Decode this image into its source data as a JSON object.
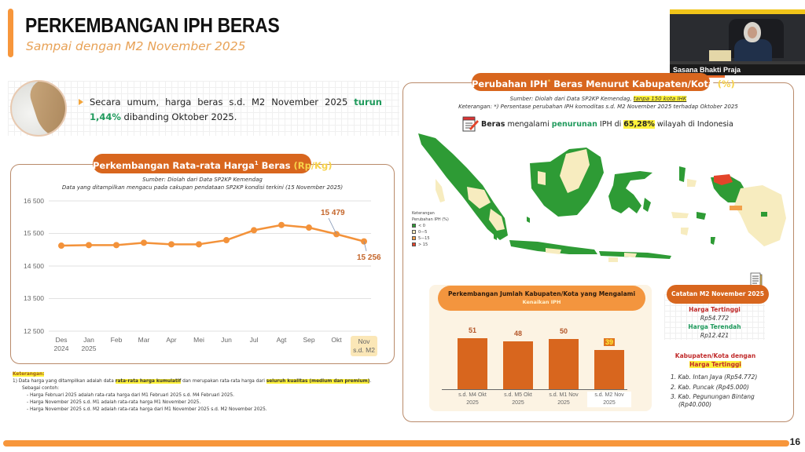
{
  "header": {
    "title": "PERKEMBANGAN IPH BERAS",
    "subtitle": "Sampai dengan M2 November 2025"
  },
  "video_feed": {
    "caption": "Sasana Bhakti Praja",
    "nameplate": "KEPALA BPS"
  },
  "intro": {
    "text_before": "Secara umum, harga beras s.d. M2 November 2025 ",
    "highlight": "turun 1,44%",
    "text_after": " dibanding Oktober 2025.",
    "highlight_color": "#1f9a5c"
  },
  "price_panel": {
    "title_main": "Perkembangan Rata-rata Harga",
    "title_sup": "1",
    "title_tail": " Beras ",
    "title_unit": "(Rp/Kg)",
    "source_line1": "Sumber: Diolah dari Data SP2KP Kemendag",
    "source_line2": "Data yang ditampilkan mengacu pada cakupan pendataan SP2KP kondisi terkini (15 November 2025)",
    "y_ticks": [
      "16 500",
      "15 500",
      "14 500",
      "13 500",
      "12 500"
    ],
    "x_ticks": [
      {
        "l1": "Des",
        "l2": "2024"
      },
      {
        "l1": "Jan",
        "l2": "2025"
      },
      {
        "l1": "Feb",
        "l2": ""
      },
      {
        "l1": "Mar",
        "l2": ""
      },
      {
        "l1": "Apr",
        "l2": ""
      },
      {
        "l1": "Mei",
        "l2": ""
      },
      {
        "l1": "Jun",
        "l2": ""
      },
      {
        "l1": "Jul",
        "l2": ""
      },
      {
        "l1": "Agt",
        "l2": ""
      },
      {
        "l1": "Sep",
        "l2": ""
      },
      {
        "l1": "Okt",
        "l2": ""
      },
      {
        "l1": "Nov",
        "l2": "s.d. M2"
      }
    ],
    "label_okt": "15 479",
    "label_nov": "15 256"
  },
  "notes": {
    "title": "Keterangan:",
    "item1_a": "1)  Data harga yang ditampilkan adalah data ",
    "item1_hl1": "rata-rata harga kumulatif",
    "item1_b": " dan merupakan rata-rata harga dari ",
    "item1_hl2": "seluruh kualitas (medium dan premium)",
    "item1_c": ".",
    "example_label": "Sebagai contoh:",
    "examples": [
      "Harga Februari 2025 adalah rata-rata harga dari M1 Februari 2025 s.d. M4 Februari 2025.",
      "Harga November 2025 s.d. M1 adalah rata-rata harga M1 November 2025.",
      "Harga November 2025 s.d. M2 adalah rata-rata harga dari M1 November 2025 s.d. M2 November 2025."
    ]
  },
  "map_panel": {
    "title_main": "Perubahan IPH",
    "title_sup": "*",
    "title_tail": " Beras Menurut Kabupaten/Kota ",
    "title_unit": "(%)",
    "source_a": "Sumber: Diolah dari Data SP2KP Kemendag, ",
    "source_hl": "tanpa 150 kota IHK",
    "keterangan": "Keterangan: *) Persentase perubahan IPH komoditas s.d. M2 November 2025 terhadap Oktober 2025",
    "stat_a": "Beras",
    "stat_b": " mengalami ",
    "stat_c": "penurunan",
    "stat_d": " IPH di ",
    "stat_e": "65,28%",
    "stat_f": " wilayah di Indonesia",
    "legend_title1": "Keterangan",
    "legend_title2": "Perubahan IPH (%)",
    "legend": [
      {
        "label": "< 0",
        "color": "#2e9b35"
      },
      {
        "label": "0—5",
        "color": "#f7ecbf"
      },
      {
        "label": "5—15",
        "color": "#f2a04a"
      },
      {
        "label": "> 15",
        "color": "#e3442a"
      }
    ]
  },
  "bar_panel": {
    "title_line1": "Perkembangan Jumlah Kabupaten/Kota yang Mengalami",
    "title_line2": "Kenaikan IPH",
    "bars": [
      {
        "value": "51",
        "cat1": "s.d. M4 Okt",
        "cat2": "2025"
      },
      {
        "value": "48",
        "cat1": "s.d. M5 Okt",
        "cat2": "2025"
      },
      {
        "value": "50",
        "cat1": "s.d. M1 Nov",
        "cat2": "2025"
      },
      {
        "value": "39",
        "cat1": "s.d. M2 Nov",
        "cat2": "2025"
      }
    ]
  },
  "catatan": {
    "title": "Catatan M2 November 2025",
    "highest_label": "Harga Tertinggi",
    "highest_value": "Rp54.772",
    "lowest_label": "Harga Terendah",
    "lowest_value": "Rp12.421",
    "kab_title_line1": "Kabupaten/Kota dengan",
    "kab_title_line2": "Harga Tertinggi",
    "kab_list": [
      "1. Kab. Intan Jaya (Rp54.772)",
      "2. Kab. Puncak (Rp45.000)",
      "3. Kab. Pegunungan Bintang",
      "(Rp40.000)"
    ]
  },
  "footer": {
    "page_number": "16"
  },
  "colors": {
    "accent_orange": "#f7963b",
    "pill_orange": "#d8661e",
    "green": "#1f9a5c",
    "line_orange": "#f3923a"
  },
  "chart_data": [
    {
      "type": "line",
      "title": "Perkembangan Rata-rata Harga Beras (Rp/Kg)",
      "xlabel": "",
      "ylabel": "Rp/Kg",
      "categories": [
        "Des 2024",
        "Jan 2025",
        "Feb",
        "Mar",
        "Apr",
        "Mei",
        "Jun",
        "Jul",
        "Agt",
        "Sep",
        "Okt",
        "Nov s.d. M2"
      ],
      "values": [
        15126,
        15143,
        15143,
        15215,
        15167,
        15167,
        15294,
        15599,
        15760,
        15680,
        15479,
        15256
      ],
      "annotations": [
        {
          "category": "Okt",
          "label": "15 479"
        },
        {
          "category": "Nov s.d. M2",
          "label": "15 256"
        }
      ],
      "ylim": [
        12500,
        16500
      ],
      "yticks": [
        12500,
        13500,
        14500,
        15500,
        16500
      ],
      "grid": true,
      "legend": "none"
    },
    {
      "type": "bar",
      "title": "Perkembangan Jumlah Kabupaten/Kota yang Mengalami Kenaikan IPH",
      "categories": [
        "s.d. M4 Okt 2025",
        "s.d. M5 Okt 2025",
        "s.d. M1 Nov 2025",
        "s.d. M2 Nov 2025"
      ],
      "values": [
        51,
        48,
        50,
        39
      ],
      "xlabel": "",
      "ylabel": "",
      "grid": false
    }
  ]
}
